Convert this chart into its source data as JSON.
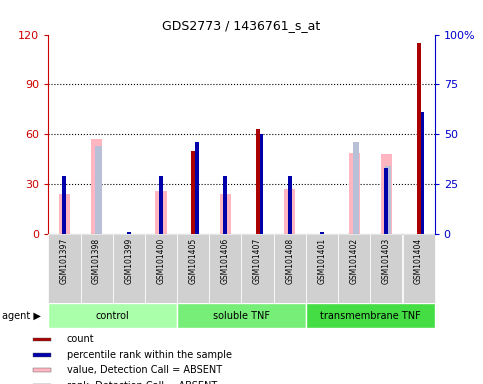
{
  "title": "GDS2773 / 1436761_s_at",
  "samples": [
    "GSM101397",
    "GSM101398",
    "GSM101399",
    "GSM101400",
    "GSM101405",
    "GSM101406",
    "GSM101407",
    "GSM101408",
    "GSM101401",
    "GSM101402",
    "GSM101403",
    "GSM101404"
  ],
  "groups": [
    {
      "label": "control",
      "start": 0,
      "end": 4
    },
    {
      "label": "soluble TNF",
      "start": 4,
      "end": 8
    },
    {
      "label": "transmembrane TNF",
      "start": 8,
      "end": 12
    }
  ],
  "count_values": [
    0,
    0,
    0,
    0,
    50,
    0,
    63,
    0,
    0,
    0,
    0,
    115
  ],
  "percentile_values": [
    29,
    0,
    1,
    29,
    46,
    29,
    50,
    29,
    1,
    0,
    33,
    61
  ],
  "value_absent": [
    24,
    57,
    0,
    26,
    0,
    24,
    0,
    27,
    0,
    49,
    48,
    0
  ],
  "rank_absent": [
    0,
    44,
    0,
    0,
    0,
    0,
    0,
    0,
    0,
    46,
    34,
    0
  ],
  "ylim_left": [
    0,
    120
  ],
  "ylim_right": [
    0,
    100
  ],
  "yticks_left": [
    0,
    30,
    60,
    90,
    120
  ],
  "yticks_right": [
    0,
    25,
    50,
    75,
    100
  ],
  "ytick_labels_right": [
    "0",
    "25",
    "50",
    "75",
    "100%"
  ],
  "left_axis_color": "#CC0000",
  "right_axis_color": "#0000CC",
  "count_color": "#AA0000",
  "percentile_color": "#0000AA",
  "value_absent_color": "#FFB6C1",
  "rank_absent_color": "#B8C0D8",
  "legend_items": [
    {
      "label": "count",
      "color": "#AA0000"
    },
    {
      "label": "percentile rank within the sample",
      "color": "#0000AA"
    },
    {
      "label": "value, Detection Call = ABSENT",
      "color": "#FFB6C1"
    },
    {
      "label": "rank, Detection Call = ABSENT",
      "color": "#B8C0D8"
    }
  ],
  "group_colors": [
    "#BBFFBB",
    "#66EE66",
    "#33DD33"
  ],
  "tick_bg_color": "#D0D0D0",
  "plot_bg": "#FFFFFF",
  "fig_bg": "#FFFFFF"
}
